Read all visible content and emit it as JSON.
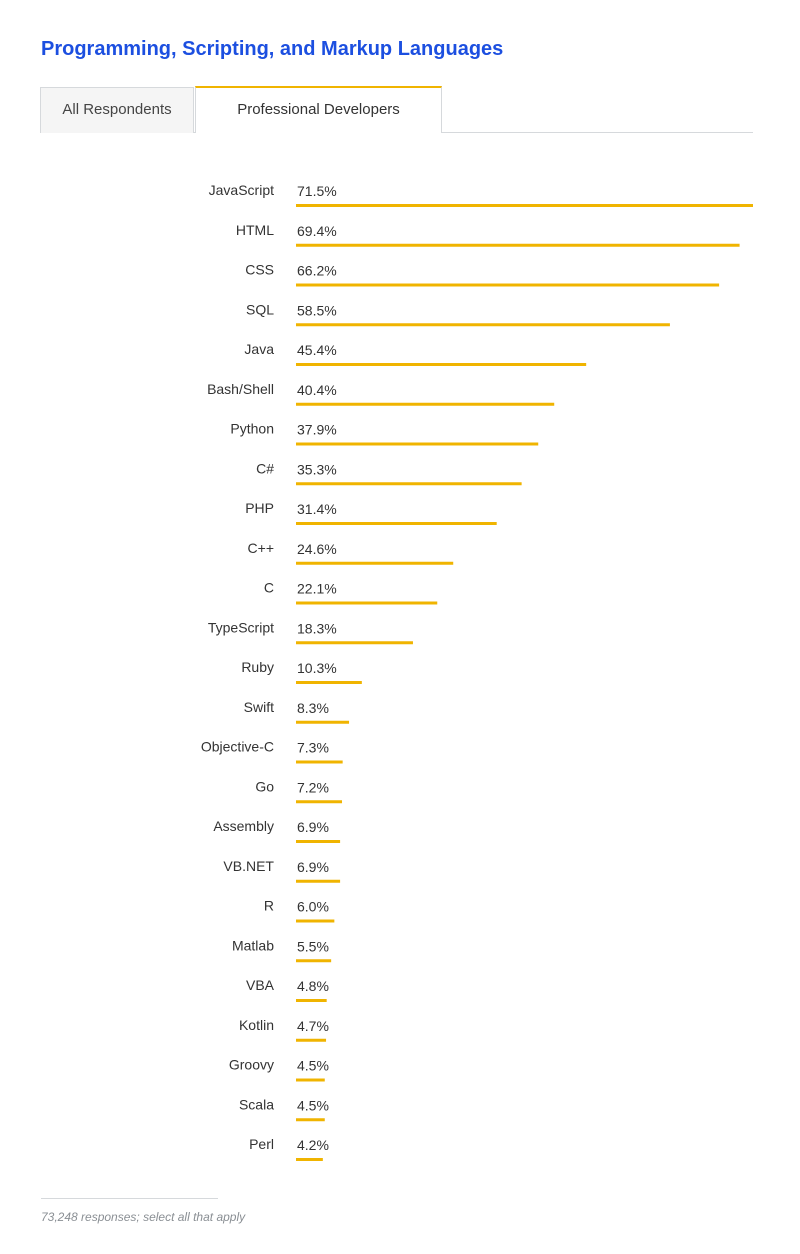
{
  "title": "Programming, Scripting, and Markup Languages",
  "tabs": [
    {
      "label": "All Respondents",
      "active": false
    },
    {
      "label": "Professional Developers",
      "active": true
    }
  ],
  "colors": {
    "title": "#1c4fe0",
    "bar": "#f0b400",
    "label": "#333333",
    "footnote": "#8a8f94"
  },
  "chart_data": {
    "type": "bar",
    "orientation": "horizontal",
    "unit": "%",
    "xlim": [
      0,
      71.5
    ],
    "grid": false,
    "categories": [
      "JavaScript",
      "HTML",
      "CSS",
      "SQL",
      "Java",
      "Bash/Shell",
      "Python",
      "C#",
      "PHP",
      "C++",
      "C",
      "TypeScript",
      "Ruby",
      "Swift",
      "Objective-C",
      "Go",
      "Assembly",
      "VB.NET",
      "R",
      "Matlab",
      "VBA",
      "Kotlin",
      "Groovy",
      "Scala",
      "Perl"
    ],
    "values": [
      71.5,
      69.4,
      66.2,
      58.5,
      45.4,
      40.4,
      37.9,
      35.3,
      31.4,
      24.6,
      22.1,
      18.3,
      10.3,
      8.3,
      7.3,
      7.2,
      6.9,
      6.9,
      6.0,
      5.5,
      4.8,
      4.7,
      4.5,
      4.5,
      4.2
    ],
    "value_labels": [
      "71.5%",
      "69.4%",
      "66.2%",
      "58.5%",
      "45.4%",
      "40.4%",
      "37.9%",
      "35.3%",
      "31.4%",
      "24.6%",
      "22.1%",
      "18.3%",
      "10.3%",
      "8.3%",
      "7.3%",
      "7.2%",
      "6.9%",
      "6.9%",
      "6.0%",
      "5.5%",
      "4.8%",
      "4.7%",
      "4.5%",
      "4.5%",
      "4.2%"
    ]
  },
  "footnote": "73,248 responses; select all that apply"
}
